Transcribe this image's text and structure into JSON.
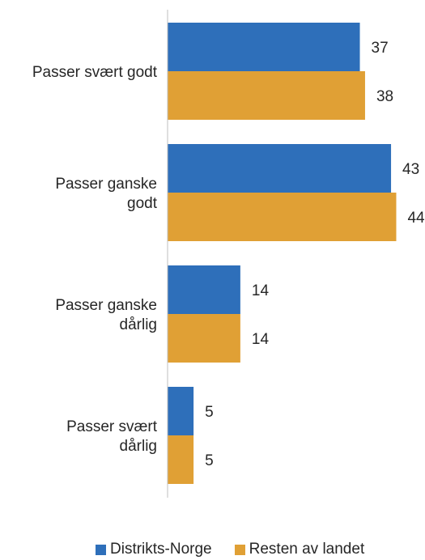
{
  "chart_data": {
    "type": "bar",
    "orientation": "horizontal",
    "categories": [
      [
        "Passer svært godt"
      ],
      [
        "Passer ganske",
        "godt"
      ],
      [
        "Passer ganske",
        "dårlig"
      ],
      [
        "Passer svært",
        "dårlig"
      ]
    ],
    "series": [
      {
        "name": "Distrikts-Norge",
        "color": "#2e6fba",
        "values": [
          37,
          43,
          14,
          5
        ]
      },
      {
        "name": "Resten av landet",
        "color": "#e0a035",
        "values": [
          38,
          44,
          14,
          5
        ]
      }
    ],
    "title": "",
    "xlabel": "",
    "ylabel": "",
    "xlim": [
      0,
      50
    ],
    "grid": false,
    "data_labels": true,
    "legend_position": "bottom"
  }
}
